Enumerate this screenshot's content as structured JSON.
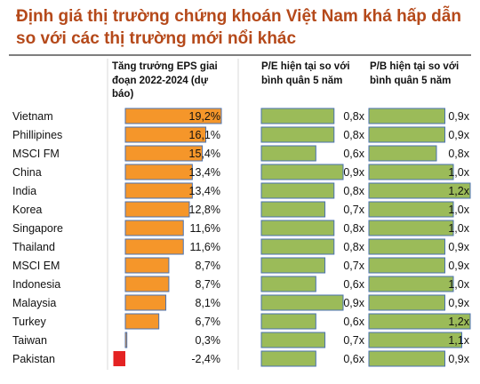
{
  "title": "Định giá thị trường chứng khoán Việt Nam khá hấp dẫn so với các thị trường mới nổi khác",
  "columns": {
    "eps": "Tăng trưởng EPS giai đoạn 2022-2024 (dự báo)",
    "pe": "P/E hiện tại so với bình quân 5 năm",
    "pb": "P/B hiện tại so với bình quân 5 năm"
  },
  "colors": {
    "positive_bar": "#f5962a",
    "negative_bar": "#e42323",
    "ratio_bar": "#9bbb59",
    "title": "#b5491a"
  },
  "chart_data": [
    {
      "type": "bar",
      "orientation": "horizontal",
      "title": "Tăng trưởng EPS giai đoạn 2022-2024 (dự báo)",
      "categories": [
        "Vietnam",
        "Phillipines",
        "MSCI FM",
        "China",
        "India",
        "Korea",
        "Singapore",
        "Thailand",
        "MSCI EM",
        "Indonesia",
        "Malaysia",
        "Turkey",
        "Taiwan",
        "Pakistan"
      ],
      "values": [
        19.2,
        16.1,
        15.4,
        13.4,
        13.4,
        12.8,
        11.6,
        11.6,
        8.7,
        8.7,
        8.1,
        6.7,
        0.3,
        -2.4
      ],
      "value_labels": [
        "19,2%",
        "16,1%",
        "15,4%",
        "13,4%",
        "13,4%",
        "12,8%",
        "11,6%",
        "11,6%",
        "8,7%",
        "8,7%",
        "8,1%",
        "6,7%",
        "0,3%",
        "-2,4%"
      ],
      "unit": "%"
    },
    {
      "type": "bar",
      "orientation": "horizontal",
      "title": "P/E hiện tại so với bình quân 5 năm",
      "categories": [
        "Vietnam",
        "Phillipines",
        "MSCI FM",
        "China",
        "India",
        "Korea",
        "Singapore",
        "Thailand",
        "MSCI EM",
        "Indonesia",
        "Malaysia",
        "Turkey",
        "Taiwan",
        "Pakistan"
      ],
      "values": [
        0.8,
        0.8,
        0.6,
        0.9,
        0.8,
        0.7,
        0.8,
        0.8,
        0.7,
        0.6,
        0.9,
        0.6,
        0.7,
        0.6
      ],
      "value_labels": [
        "0,8x",
        "0,8x",
        "0,6x",
        "0,9x",
        "0,8x",
        "0,7x",
        "0,8x",
        "0,8x",
        "0,7x",
        "0,6x",
        "0,9x",
        "0,6x",
        "0,7x",
        "0,6x"
      ],
      "unit": "x"
    },
    {
      "type": "bar",
      "orientation": "horizontal",
      "title": "P/B hiện tại so với bình quân 5 năm",
      "categories": [
        "Vietnam",
        "Phillipines",
        "MSCI FM",
        "China",
        "India",
        "Korea",
        "Singapore",
        "Thailand",
        "MSCI EM",
        "Indonesia",
        "Malaysia",
        "Turkey",
        "Taiwan",
        "Pakistan"
      ],
      "values": [
        0.9,
        0.9,
        0.8,
        1.0,
        1.2,
        1.0,
        1.0,
        0.9,
        0.9,
        1.0,
        0.9,
        1.2,
        1.1,
        0.9
      ],
      "value_labels": [
        "0,9x",
        "0,9x",
        "0,8x",
        "1,0x",
        "1,2x",
        "1,0x",
        "1,0x",
        "0,9x",
        "0,9x",
        "1,0x",
        "0,9x",
        "1,2x",
        "1,1x",
        "0,9x"
      ],
      "unit": "x"
    }
  ]
}
